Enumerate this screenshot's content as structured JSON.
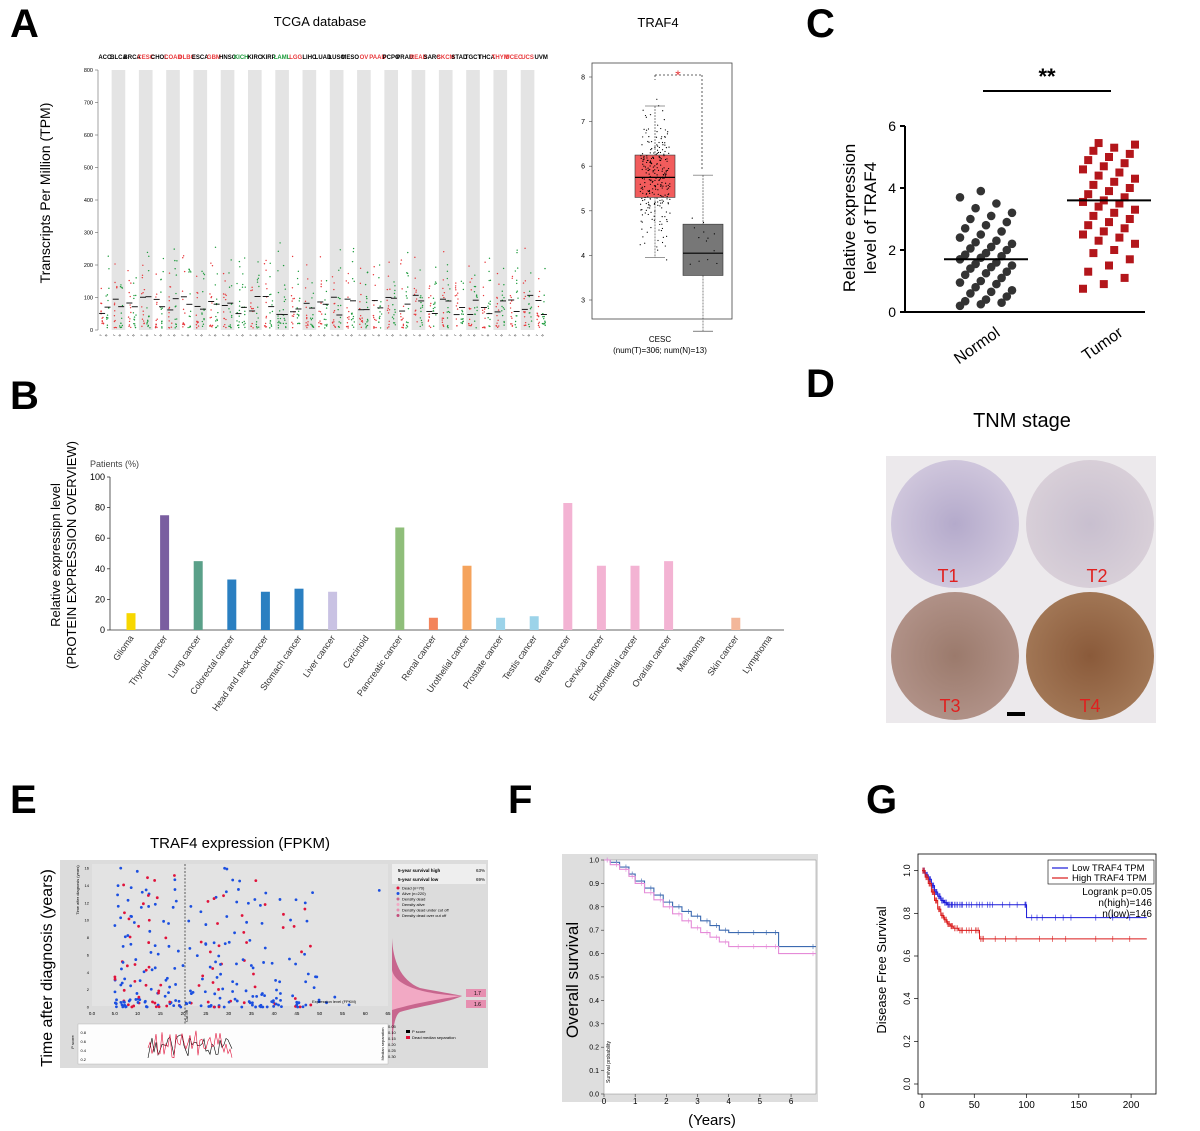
{
  "panel_labels": {
    "a": "A",
    "b": "B",
    "c": "C",
    "d": "D",
    "e": "E",
    "f": "F",
    "g": "G"
  },
  "panelA": {
    "title": "TCGA database",
    "ylabel": "Transcripts Per Million (TPM)",
    "yticks": [
      "0",
      "100",
      "200",
      "300",
      "400",
      "500",
      "600",
      "700",
      "800"
    ],
    "cancers": [
      {
        "name": "ACC",
        "color": "#000000"
      },
      {
        "name": "BLCA",
        "color": "#000000"
      },
      {
        "name": "BRCA",
        "color": "#000000"
      },
      {
        "name": "CESC",
        "color": "#e8383b"
      },
      {
        "name": "CHOL",
        "color": "#000000"
      },
      {
        "name": "COAD",
        "color": "#e8383b"
      },
      {
        "name": "DLBC",
        "color": "#e8383b"
      },
      {
        "name": "ESCA",
        "color": "#000000"
      },
      {
        "name": "GBM",
        "color": "#e8383b"
      },
      {
        "name": "HNSC",
        "color": "#000000"
      },
      {
        "name": "KICH",
        "color": "#1a9a3a"
      },
      {
        "name": "KIRC",
        "color": "#000000"
      },
      {
        "name": "KIRP",
        "color": "#000000"
      },
      {
        "name": "LAML",
        "color": "#1a9a3a"
      },
      {
        "name": "LGG",
        "color": "#e8383b"
      },
      {
        "name": "LIHC",
        "color": "#000000"
      },
      {
        "name": "LUAD",
        "color": "#000000"
      },
      {
        "name": "LUSC",
        "color": "#000000"
      },
      {
        "name": "MESO",
        "color": "#000000"
      },
      {
        "name": "OV",
        "color": "#e8383b"
      },
      {
        "name": "PAAD",
        "color": "#e8383b"
      },
      {
        "name": "PCPG",
        "color": "#000000"
      },
      {
        "name": "PRAD",
        "color": "#000000"
      },
      {
        "name": "READ",
        "color": "#e8383b"
      },
      {
        "name": "SARC",
        "color": "#000000"
      },
      {
        "name": "SKCM",
        "color": "#e8383b"
      },
      {
        "name": "STAD",
        "color": "#000000"
      },
      {
        "name": "TGCT",
        "color": "#000000"
      },
      {
        "name": "THCA",
        "color": "#000000"
      },
      {
        "name": "THYM",
        "color": "#e8383b"
      },
      {
        "name": "UCEC",
        "color": "#e8383b"
      },
      {
        "name": "UCS",
        "color": "#e8383b"
      },
      {
        "name": "UVM",
        "color": "#000000"
      }
    ],
    "box": {
      "title": "TRAF4",
      "star": "*",
      "yticks": [
        "3",
        "4",
        "5",
        "6",
        "7",
        "8"
      ],
      "xlabel": "CESC",
      "sublabel": "(num(T)=306; num(N)=13)",
      "tumor": {
        "min": 3.95,
        "q1": 5.3,
        "median": 5.75,
        "q3": 6.25,
        "max": 7.35
      },
      "normal": {
        "min": 2.3,
        "q1": 3.55,
        "median": 4.05,
        "q3": 4.7,
        "max": 5.8
      }
    }
  },
  "panelB": {
    "ylabel1": "Relative expressipn level",
    "ylabel2": "(PROTEIN EXPRESSION OVERVIEW)",
    "patients_label": "Patients (%)",
    "yticks": [
      "0",
      "20",
      "40",
      "60",
      "80",
      "100"
    ]
  },
  "panelC": {
    "ylabel1": "Relative expression",
    "ylabel2": "level of TRAF4",
    "yticks": [
      "0",
      "2",
      "4",
      "6"
    ],
    "sig": "**"
  },
  "panelD": {
    "title": "TNM stage",
    "cores": [
      "T1",
      "T2",
      "T3",
      "T4"
    ]
  },
  "panelE": {
    "title": "TRAF4 expression (FPKM)",
    "ylabel": "Time after diagnosis (years)",
    "inner_ylabel": "Time after diagnosis (years)",
    "inner_xlabel": "Expression level (FPKM)",
    "xticks": [
      "0.0",
      "5.0",
      "10",
      "15",
      "20",
      "25",
      "30",
      "35",
      "40",
      "45",
      "50",
      "55",
      "60",
      "65"
    ],
    "yticks": [
      "0",
      "2",
      "4",
      "6",
      "8",
      "10",
      "12",
      "14",
      "16"
    ],
    "surv_high_label": "5-year survival high",
    "surv_high_value": "63%",
    "surv_low_label": "5-year survival low",
    "surv_low_value": "69%",
    "legend": [
      "Dead (n=70)",
      "Alive (n=220)",
      "Density dead",
      "Density alive",
      "Density dead under cut off",
      "Density dead over cut off"
    ],
    "density_values": [
      "1.7",
      "1.6"
    ],
    "cutoff_label": "Cut off",
    "pscore_label": "P score",
    "pscore_ticks": [
      "0.2",
      "0.4",
      "0.6",
      "0.8"
    ],
    "median_sep_label": "Median separation",
    "right_ticks": [
      "0.05",
      "0.10",
      "0.15",
      "0.20",
      "0.25",
      "0.30"
    ],
    "bottom_legend": [
      "P score",
      "Dead median separation"
    ]
  },
  "panelF": {
    "ylabel": "Overall survival",
    "xlabel": "(Years)",
    "inner_label": "Survival probability",
    "xticks": [
      "0",
      "1",
      "2",
      "3",
      "4",
      "5",
      "6"
    ],
    "yticks": [
      "0.0",
      "0.1",
      "0.2",
      "0.3",
      "0.4",
      "0.5",
      "0.6",
      "0.7",
      "0.8",
      "0.9",
      "1.0"
    ]
  },
  "panelG": {
    "ylabel": "Disease Free Survival",
    "xticks": [
      "0",
      "50",
      "100",
      "150",
      "200"
    ],
    "yticks": [
      "0.0",
      "0.2",
      "0.4",
      "0.6",
      "0.8",
      "1.0"
    ],
    "legend_low": "Low TRAF4 TPM",
    "legend_high": "High TRAF4 TPM",
    "logrank": "Logrank p=0.05",
    "n_high": "n(high)=146",
    "n_low": "n(low)=146"
  },
  "chart_data": [
    {
      "type": "scatter",
      "id": "C",
      "categories": [
        "Normol",
        "Tumor"
      ],
      "series": [
        {
          "name": "Normol",
          "mean": 1.7,
          "color": "#333333",
          "values": [
            0.2,
            0.25,
            0.3,
            0.35,
            0.4,
            0.5,
            0.6,
            0.65,
            0.7,
            0.8,
            0.9,
            0.95,
            1.0,
            1.1,
            1.2,
            1.25,
            1.3,
            1.4,
            1.45,
            1.5,
            1.55,
            1.6,
            1.7,
            1.75,
            1.8,
            1.85,
            1.9,
            2.0,
            2.05,
            2.1,
            2.2,
            2.25,
            2.3,
            2.4,
            2.5,
            2.6,
            2.7,
            2.8,
            2.9,
            3.0,
            3.1,
            3.2,
            3.35,
            3.5,
            3.7,
            3.9
          ]
        },
        {
          "name": "Tumor",
          "mean": 3.6,
          "color": "#b3161b",
          "values": [
            0.75,
            0.9,
            1.1,
            1.3,
            1.5,
            1.7,
            1.9,
            2.0,
            2.2,
            2.3,
            2.4,
            2.5,
            2.6,
            2.7,
            2.8,
            2.9,
            3.0,
            3.1,
            3.2,
            3.3,
            3.4,
            3.5,
            3.55,
            3.6,
            3.7,
            3.8,
            3.9,
            4.0,
            4.1,
            4.2,
            4.3,
            4.4,
            4.5,
            4.6,
            4.7,
            4.8,
            4.9,
            5.0,
            5.1,
            5.2,
            5.3,
            5.4,
            5.45
          ]
        }
      ],
      "ylim": [
        0,
        6
      ]
    },
    {
      "type": "bar",
      "id": "B",
      "categories": [
        "Glioma",
        "Thyroid cancer",
        "Lung cancer",
        "Colorectal cancer",
        "Head and neck cancer",
        "Stomach cancer",
        "Liver cancer",
        "Carcinoid",
        "Pancreatic cancer",
        "Renal cancer",
        "Urothelial cancer",
        "Prostate cancer",
        "Testis cancer",
        "Breast cancer",
        "Cervical cancer",
        "Endometrial cancer",
        "Ovarian cancer",
        "Melanoma",
        "Skin cancer",
        "Lymphoma"
      ],
      "values": [
        11,
        75,
        45,
        33,
        25,
        27,
        25,
        0,
        67,
        8,
        42,
        8,
        9,
        83,
        42,
        42,
        45,
        0,
        8,
        0
      ],
      "colors": [
        "#f7d700",
        "#7a5ea0",
        "#5aa089",
        "#2a7fc1",
        "#2a7fc1",
        "#2a7fc1",
        "#c9c2e3",
        "#888888",
        "#8fbe7a",
        "#f3845b",
        "#f5a35c",
        "#9cd3e9",
        "#9cd3e9",
        "#f3b3d3",
        "#f3b3d3",
        "#f3b3d3",
        "#f3b3d3",
        "#f3b3d3",
        "#f3b79a",
        "#cccccc"
      ],
      "ylim": [
        0,
        100
      ]
    },
    {
      "type": "line",
      "id": "F",
      "x_range": [
        0,
        6.8
      ],
      "ylim": [
        0,
        1
      ],
      "series": [
        {
          "name": "blue",
          "color": "#3c6ab0",
          "x": [
            0,
            0.2,
            0.5,
            0.8,
            1.0,
            1.3,
            1.6,
            1.9,
            2.2,
            2.5,
            2.8,
            3.1,
            3.4,
            3.7,
            4.0,
            4.4,
            4.9,
            5.3,
            5.6,
            6.8
          ],
          "y": [
            1.0,
            0.99,
            0.97,
            0.94,
            0.91,
            0.88,
            0.85,
            0.82,
            0.8,
            0.78,
            0.76,
            0.74,
            0.72,
            0.7,
            0.69,
            0.69,
            0.69,
            0.69,
            0.63,
            0.63
          ]
        },
        {
          "name": "pink",
          "color": "#e58bd8",
          "x": [
            0,
            0.2,
            0.5,
            0.8,
            1.0,
            1.3,
            1.6,
            1.9,
            2.2,
            2.5,
            2.8,
            3.1,
            3.4,
            3.7,
            4.0,
            4.4,
            4.9,
            5.3,
            5.6,
            6.8
          ],
          "y": [
            1.0,
            0.98,
            0.96,
            0.93,
            0.9,
            0.86,
            0.83,
            0.8,
            0.77,
            0.74,
            0.71,
            0.69,
            0.67,
            0.65,
            0.63,
            0.63,
            0.63,
            0.63,
            0.6,
            0.6
          ]
        }
      ]
    },
    {
      "type": "line",
      "id": "G",
      "x_range": [
        0,
        215
      ],
      "ylim": [
        0,
        1
      ],
      "series": [
        {
          "name": "Low TRAF4 TPM",
          "color": "#1a1ad9",
          "x": [
            0,
            3,
            6,
            9,
            12,
            15,
            18,
            21,
            24,
            27,
            30,
            35,
            40,
            50,
            60,
            70,
            98,
            100,
            120,
            150,
            215
          ],
          "y": [
            1.0,
            0.98,
            0.96,
            0.93,
            0.9,
            0.88,
            0.86,
            0.85,
            0.84,
            0.84,
            0.84,
            0.84,
            0.84,
            0.84,
            0.84,
            0.84,
            0.84,
            0.78,
            0.78,
            0.78,
            0.78
          ]
        },
        {
          "name": "High TRAF4 TPM",
          "color": "#d91a1a",
          "x": [
            0,
            3,
            6,
            9,
            12,
            15,
            18,
            21,
            24,
            27,
            30,
            35,
            40,
            50,
            55,
            60,
            100,
            150,
            215
          ],
          "y": [
            1.0,
            0.97,
            0.94,
            0.9,
            0.86,
            0.82,
            0.79,
            0.77,
            0.75,
            0.74,
            0.73,
            0.72,
            0.72,
            0.72,
            0.68,
            0.68,
            0.68,
            0.68,
            0.68
          ]
        }
      ]
    }
  ]
}
